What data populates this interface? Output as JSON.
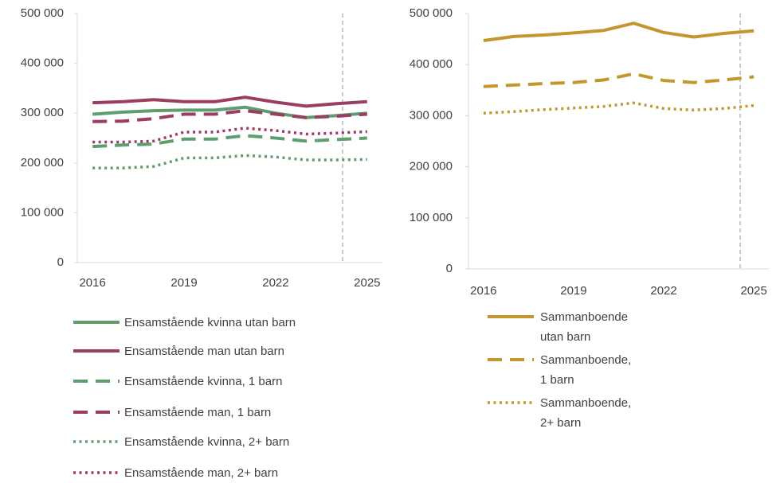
{
  "chart_data": [
    {
      "type": "line",
      "categories": [
        "2016",
        null,
        null,
        "2019",
        null,
        null,
        "2022",
        null,
        null,
        "2025"
      ],
      "ylim": [
        0,
        500000
      ],
      "yticks": [
        0,
        {
          "value": 100000,
          "label": "100 000"
        },
        {
          "value": 200000,
          "label": "200 000"
        },
        {
          "value": 300000,
          "label": "300 000"
        },
        {
          "value": 400000,
          "label": "400 000"
        },
        {
          "value": 500000,
          "label": "500 000"
        }
      ],
      "grid": false,
      "legend": "bottom",
      "series": [
        {
          "name": "Ensamstående kvinna utan barn",
          "color": "#5e9e6e",
          "dash": "solid",
          "values": [
            298000,
            302000,
            305000,
            306000,
            306000,
            312000,
            300000,
            291000,
            295000,
            300000
          ]
        },
        {
          "name": "Ensamstående man utan barn",
          "color": "#9b3c62",
          "dash": "solid",
          "values": [
            321000,
            323000,
            327000,
            323000,
            323000,
            332000,
            322000,
            314000,
            319000,
            323000
          ]
        },
        {
          "name": "Ensamstående kvinna, 1 barn",
          "color": "#5e9e6e",
          "dash": "dashed",
          "values": [
            233000,
            236000,
            238000,
            248000,
            248000,
            255000,
            250000,
            244000,
            247000,
            250000
          ]
        },
        {
          "name": "Ensamstående man, 1 barn",
          "color": "#9b3c62",
          "dash": "dashed",
          "values": [
            283000,
            284000,
            289000,
            298000,
            298000,
            305000,
            298000,
            291000,
            294000,
            298000
          ]
        },
        {
          "name": "Ensamstående kvinna, 2+ barn",
          "color": "#5e9e6e",
          "dash": "dotted",
          "values": [
            190000,
            190000,
            193000,
            210000,
            210000,
            215000,
            212000,
            206000,
            206000,
            207000
          ]
        },
        {
          "name": "Ensamstående man, 2+ barn",
          "color": "#9b3c62",
          "dash": "dotted",
          "values": [
            242000,
            242000,
            244000,
            262000,
            262000,
            270000,
            265000,
            258000,
            260000,
            263000
          ]
        }
      ]
    },
    {
      "type": "line",
      "categories": [
        "2016",
        null,
        null,
        "2019",
        null,
        null,
        "2022",
        null,
        null,
        "2025"
      ],
      "ylim": [
        0,
        500000
      ],
      "yticks": [
        0,
        {
          "value": 100000,
          "label": "100 000"
        },
        {
          "value": 200000,
          "label": "200 000"
        },
        {
          "value": 300000,
          "label": "300 000"
        },
        {
          "value": 400000,
          "label": "400 000"
        },
        {
          "value": 500000,
          "label": "500 000"
        }
      ],
      "grid": false,
      "legend": "bottom",
      "series": [
        {
          "name": "Sammanboende utan barn",
          "color": "#c3972e",
          "dash": "solid",
          "values": [
            447000,
            455000,
            458000,
            462000,
            467000,
            481000,
            463000,
            454000,
            461000,
            466000
          ]
        },
        {
          "name": "Sammanboende, 1 barn",
          "color": "#c3972e",
          "dash": "dashed",
          "values": [
            357000,
            360000,
            363000,
            365000,
            370000,
            382000,
            369000,
            365000,
            370000,
            376000
          ]
        },
        {
          "name": "Sammanboende, 2+ barn",
          "color": "#c3972e",
          "dash": "dotted",
          "values": [
            305000,
            308000,
            312000,
            315000,
            318000,
            325000,
            314000,
            311000,
            314000,
            320000
          ]
        }
      ]
    }
  ]
}
